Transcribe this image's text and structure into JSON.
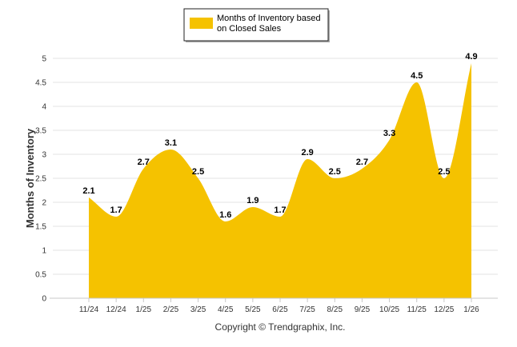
{
  "chart_data": {
    "type": "area",
    "categories": [
      "11/24",
      "12/24",
      "1/25",
      "2/25",
      "3/25",
      "4/25",
      "5/25",
      "6/25",
      "7/25",
      "8/25",
      "9/25",
      "10/25",
      "11/25",
      "12/25",
      "1/26"
    ],
    "series": [
      {
        "name": "Months of Inventory based on Closed Sales",
        "values": [
          2.1,
          1.7,
          2.7,
          3.1,
          2.5,
          1.6,
          1.9,
          1.7,
          2.9,
          2.5,
          2.7,
          3.3,
          4.5,
          2.5,
          4.9
        ]
      }
    ],
    "legend_lines": [
      "Months of Inventory based",
      "on Closed Sales"
    ],
    "ylabel": "Months of Inventory",
    "xlabel": "",
    "ylim": [
      0,
      5
    ],
    "yticks": [
      "0",
      "0.5",
      "1",
      "1.5",
      "2",
      "2.5",
      "3",
      "3.5",
      "4",
      "4.5",
      "5"
    ],
    "grid": true,
    "legend_position": "top-center",
    "color": "#F5C200",
    "copyright": "Copyright © Trendgraphix, Inc."
  }
}
